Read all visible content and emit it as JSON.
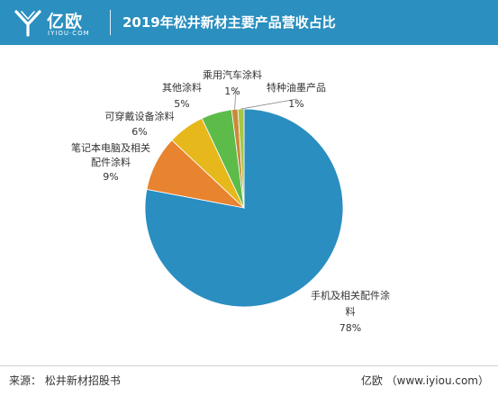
{
  "header": {
    "logo_cn": "亿欧",
    "logo_en": "IYIOU·COM",
    "title": "2019年松井新材主要产品营收占比"
  },
  "colors": {
    "header_bg": "#2b8fbf"
  },
  "chart_data": {
    "type": "pie",
    "title": "2019年松井新材主要产品营收占比",
    "slices": [
      {
        "label_lines": [
          "手机及相关配件涂",
          "料"
        ],
        "value_text": "78%",
        "value": 78,
        "color": "#2a8ec0"
      },
      {
        "label_lines": [
          "笔记本电脑及相关",
          "配件涂料"
        ],
        "value_text": "9%",
        "value": 9,
        "color": "#e8832f"
      },
      {
        "label_lines": [
          "可穿戴设备涂料"
        ],
        "value_text": "6%",
        "value": 6,
        "color": "#e6b81c"
      },
      {
        "label_lines": [
          "其他涂料"
        ],
        "value_text": "5%",
        "value": 5,
        "color": "#5dbb4a"
      },
      {
        "label_lines": [
          "乘用汽车涂料"
        ],
        "value_text": "1%",
        "value": 1,
        "color": "#c98a3a"
      },
      {
        "label_lines": [
          "特种油墨产品"
        ],
        "value_text": "1%",
        "value": 1,
        "color": "#a8c646"
      }
    ]
  },
  "footer": {
    "source": "来源：  松井新材招股书",
    "brand": "亿欧  （www.iyiou.com）"
  }
}
